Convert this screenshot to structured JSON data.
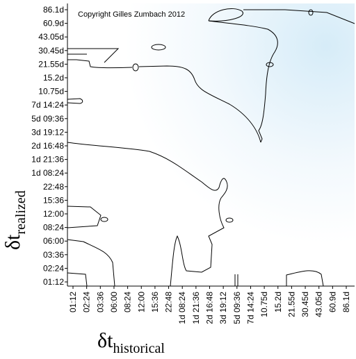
{
  "chart_data": {
    "type": "contour",
    "annotation": "Copyright Gilles Zumbach 2012",
    "x_label": {
      "symbol": "δt",
      "subscript": "historical"
    },
    "y_label": {
      "symbol": "δt",
      "subscript": "realized"
    },
    "x_categories": [
      "01:12",
      "02:24",
      "03:36",
      "06:00",
      "08:24",
      "12:00",
      "15:36",
      "22:48",
      "1d 08:24",
      "1d 21:36",
      "2d 16:48",
      "3d 19:12",
      "5d 09:36",
      "7d 14:24",
      "10.75d",
      "15.2d",
      "21.55d",
      "30.45d",
      "43.05d",
      "60.9d",
      "86.1d"
    ],
    "y_categories": [
      "01:12",
      "02:24",
      "03:36",
      "06:00",
      "08:24",
      "12:00",
      "15:36",
      "22:48",
      "1d 08:24",
      "1d 21:36",
      "2d 16:48",
      "3d 19:12",
      "5d 09:36",
      "7d 14:24",
      "10.75d",
      "15.2d",
      "21.55d",
      "30.45d",
      "43.05d",
      "60.9d",
      "86.1d"
    ]
  }
}
